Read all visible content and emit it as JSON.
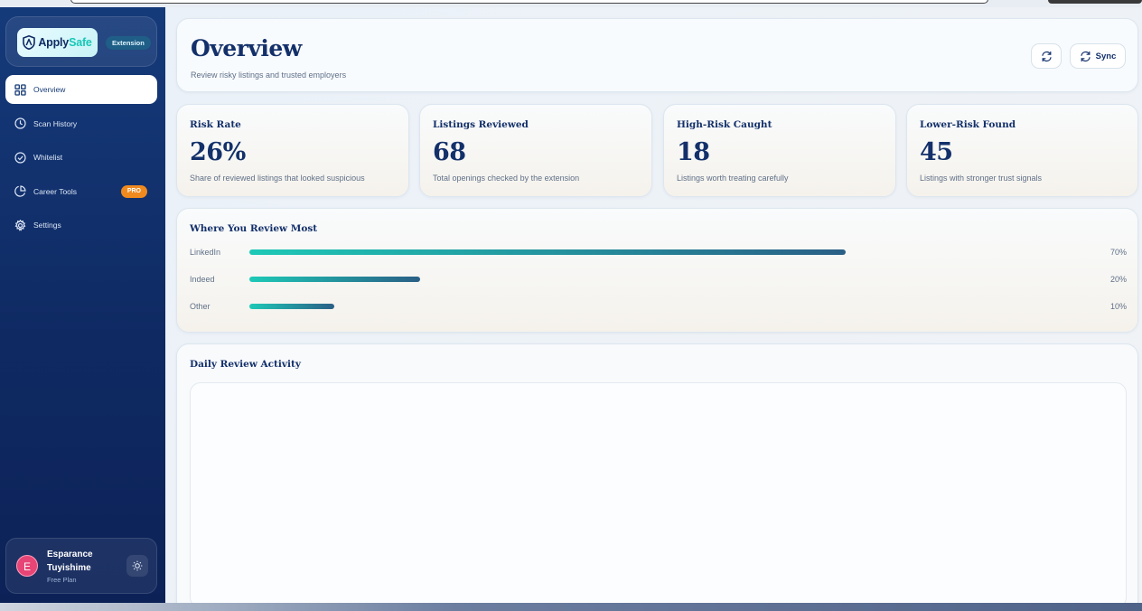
{
  "brand": {
    "name_part1": "Apply",
    "name_part2": "Safe",
    "badge": "Extension"
  },
  "nav": [
    {
      "label": "Overview",
      "icon": "grid-icon",
      "active": true
    },
    {
      "label": "Scan History",
      "icon": "clock-icon"
    },
    {
      "label": "Whitelist",
      "icon": "check-circle-icon"
    },
    {
      "label": "Career Tools",
      "icon": "pie-chart-icon",
      "badge": "PRO"
    },
    {
      "label": "Settings",
      "icon": "gear-icon"
    }
  ],
  "user": {
    "initial": "E",
    "name": "Esparance Tuyishime",
    "plan": "Free Plan"
  },
  "header": {
    "title": "Overview",
    "subtitle": "Review risky listings and trusted employers",
    "sync_label": "Sync"
  },
  "stats": [
    {
      "title": "Risk Rate",
      "value": "26%",
      "desc": "Share of reviewed listings that looked suspicious"
    },
    {
      "title": "Listings Reviewed",
      "value": "68",
      "desc": "Total openings checked by the extension"
    },
    {
      "title": "High-Risk Caught",
      "value": "18",
      "desc": "Listings worth treating carefully"
    },
    {
      "title": "Lower-Risk Found",
      "value": "45",
      "desc": "Listings with stronger trust signals"
    }
  ],
  "sources": {
    "title": "Where You Review Most",
    "items": [
      {
        "label": "LinkedIn",
        "percent": 70,
        "display": "70%"
      },
      {
        "label": "Indeed",
        "percent": 20,
        "display": "20%"
      },
      {
        "label": "Other",
        "percent": 10,
        "display": "10%"
      }
    ]
  },
  "activity": {
    "title": "Daily Review Activity"
  },
  "colors": {
    "sidebar": "#0f2a63",
    "accent_teal": "#1ec9b7",
    "accent_navy": "#2a5f86",
    "pro_badge": "#f08a1f",
    "avatar": "#e64576",
    "title": "#13306a"
  }
}
